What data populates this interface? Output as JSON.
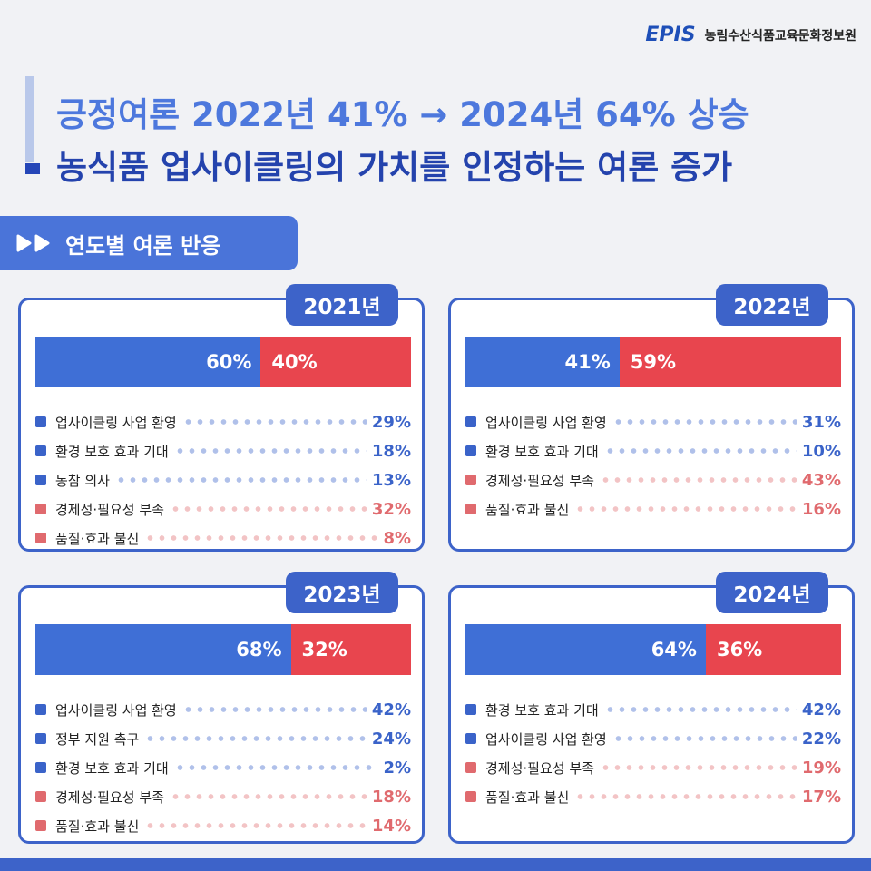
{
  "header": {
    "org_logo": "EPIS",
    "org_name": "농림수산식품교육문화정보원",
    "title_line1": "긍정여론 2022년 41% → 2024년 64% 상승",
    "title_line2": "농식품 업사이클링의 가치를 인정하는 여론 증가"
  },
  "section": {
    "title": "연도별 여론 반응"
  },
  "panels": [
    {
      "year": "2021년",
      "bar": {
        "values": [
          60,
          40
        ],
        "value_labels": [
          "60%",
          "40%"
        ],
        "colors": [
          "#3f6fd6",
          "#e8454e"
        ],
        "xlim": [
          0,
          100
        ]
      },
      "items": [
        {
          "label": "업사이클링 사업 환영",
          "percent": "29%",
          "color": "#3a63c9"
        },
        {
          "label": "환경 보호 효과 기대",
          "percent": "18%",
          "color": "#3a63c9"
        },
        {
          "label": "동참 의사",
          "percent": "13%",
          "color": "#3a63c9"
        },
        {
          "label": "경제성·필요성 부족",
          "percent": "32%",
          "color": "#e06a6e"
        },
        {
          "label": "품질·효과 불신",
          "percent": "8%",
          "color": "#e06a6e"
        }
      ]
    },
    {
      "year": "2022년",
      "bar": {
        "values": [
          41,
          59
        ],
        "value_labels": [
          "41%",
          "59%"
        ],
        "colors": [
          "#3f6fd6",
          "#e8454e"
        ],
        "xlim": [
          0,
          100
        ]
      },
      "items": [
        {
          "label": "업사이클링 사업 환영",
          "percent": "31%",
          "color": "#3a63c9"
        },
        {
          "label": "환경 보호 효과 기대",
          "percent": "10%",
          "color": "#3a63c9"
        },
        {
          "label": "경제성·필요성 부족",
          "percent": "43%",
          "color": "#e06a6e"
        },
        {
          "label": "품질·효과 불신",
          "percent": "16%",
          "color": "#e06a6e"
        }
      ]
    },
    {
      "year": "2023년",
      "bar": {
        "values": [
          68,
          32
        ],
        "value_labels": [
          "68%",
          "32%"
        ],
        "colors": [
          "#3f6fd6",
          "#e8454e"
        ],
        "xlim": [
          0,
          100
        ]
      },
      "items": [
        {
          "label": "업사이클링 사업 환영",
          "percent": "42%",
          "color": "#3a63c9"
        },
        {
          "label": "정부 지원 촉구",
          "percent": "24%",
          "color": "#3a63c9"
        },
        {
          "label": "환경 보호 효과 기대",
          "percent": "2%",
          "color": "#3a63c9"
        },
        {
          "label": "경제성·필요성 부족",
          "percent": "18%",
          "color": "#e06a6e"
        },
        {
          "label": "품질·효과 불신",
          "percent": "14%",
          "color": "#e06a6e"
        }
      ]
    },
    {
      "year": "2024년",
      "bar": {
        "values": [
          64,
          36
        ],
        "value_labels": [
          "64%",
          "36%"
        ],
        "colors": [
          "#3f6fd6",
          "#e8454e"
        ],
        "xlim": [
          0,
          100
        ]
      },
      "items": [
        {
          "label": "환경 보호 효과 기대",
          "percent": "42%",
          "color": "#3a63c9"
        },
        {
          "label": "업사이클링 사업 환영",
          "percent": "22%",
          "color": "#3a63c9"
        },
        {
          "label": "경제성·필요성 부족",
          "percent": "19%",
          "color": "#e06a6e"
        },
        {
          "label": "품질·효과 불신",
          "percent": "17%",
          "color": "#e06a6e"
        }
      ]
    }
  ]
}
